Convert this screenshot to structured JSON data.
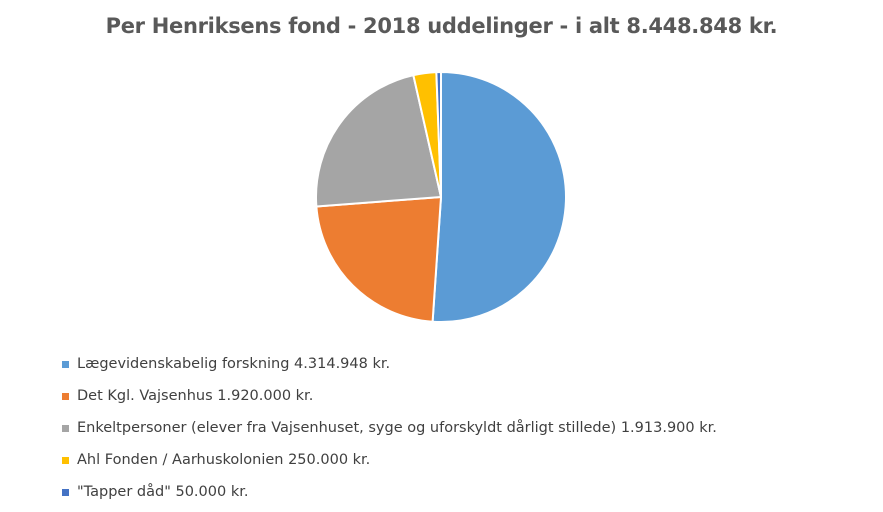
{
  "chart_data": {
    "type": "pie",
    "title": "Per Henriksens fond - 2018 uddelinger - i alt 8.448.848 kr.",
    "slices": [
      {
        "label": "Lægevidenskabelig forskning 4.314.948 kr.",
        "value": 4314948,
        "color": "#5b9bd5"
      },
      {
        "label": "Det Kgl. Vajsenhus 1.920.000 kr.",
        "value": 1920000,
        "color": "#ed7d31"
      },
      {
        "label": "Enkeltpersoner (elever fra Vajsenhuset, syge og uforskyldt dårligt stillede) 1.913.900 kr.",
        "value": 1913900,
        "color": "#a5a5a5"
      },
      {
        "label": "Ahl Fonden / Aarhuskolonien 250.000 kr.",
        "value": 250000,
        "color": "#ffc000"
      },
      {
        "label": "\"Tapper dåd\" 50.000 kr.",
        "value": 50000,
        "color": "#4472c4"
      }
    ],
    "legend_position": "bottom-left"
  }
}
